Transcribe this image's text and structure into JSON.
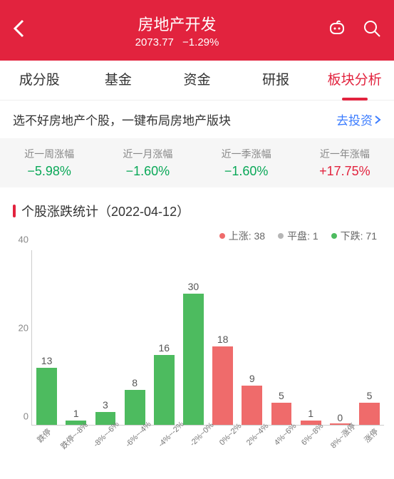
{
  "header": {
    "title": "房地产开发",
    "value": "2073.77",
    "change": "−1.29%"
  },
  "tabs": [
    {
      "label": "成分股"
    },
    {
      "label": "基金"
    },
    {
      "label": "资金"
    },
    {
      "label": "研报"
    },
    {
      "label": "板块分析"
    }
  ],
  "active_tab": 4,
  "banner": {
    "text": "选不好房地产个股，一键布局房地产版块",
    "link": "去投资"
  },
  "perf": [
    {
      "label": "近一周涨幅",
      "value": "−5.98%",
      "dir": "neg"
    },
    {
      "label": "近一月涨幅",
      "value": "−1.60%",
      "dir": "neg"
    },
    {
      "label": "近一季涨幅",
      "value": "−1.60%",
      "dir": "neg"
    },
    {
      "label": "近一年涨幅",
      "value": "+17.75%",
      "dir": "pos"
    }
  ],
  "section": {
    "title": "个股涨跌统计（2022-04-12）"
  },
  "legend": {
    "up": {
      "label": "上涨",
      "count": 38,
      "color": "#ef6b6b"
    },
    "flat": {
      "label": "平盘",
      "count": 1,
      "color": "#b6b6b6"
    },
    "down": {
      "label": "下跌",
      "count": 71,
      "color": "#4dbb5f"
    }
  },
  "chart": {
    "type": "bar",
    "ymax": 40,
    "yticks": [
      0,
      20,
      40
    ],
    "colors": {
      "down": "#4dbb5f",
      "up": "#ef6b6b",
      "flat": "#b6b6b6"
    },
    "bar_width_pct": 70,
    "label_fontsize": 14,
    "xlabel_fontsize": 11,
    "xlabel_rotation": -45,
    "categories": [
      "跌停",
      "跌停~-8%",
      "-8%~-6%",
      "-6%~-4%",
      "-4%~-2%",
      "-2%~0%",
      "0%~2%",
      "2%~4%",
      "4%~6%",
      "6%~8%",
      "8%~涨停",
      "涨停"
    ],
    "values": [
      13,
      1,
      3,
      8,
      16,
      30,
      18,
      9,
      5,
      1,
      0,
      5
    ],
    "series": [
      "down",
      "down",
      "down",
      "down",
      "down",
      "down",
      "up",
      "up",
      "up",
      "up",
      "up",
      "up"
    ]
  }
}
